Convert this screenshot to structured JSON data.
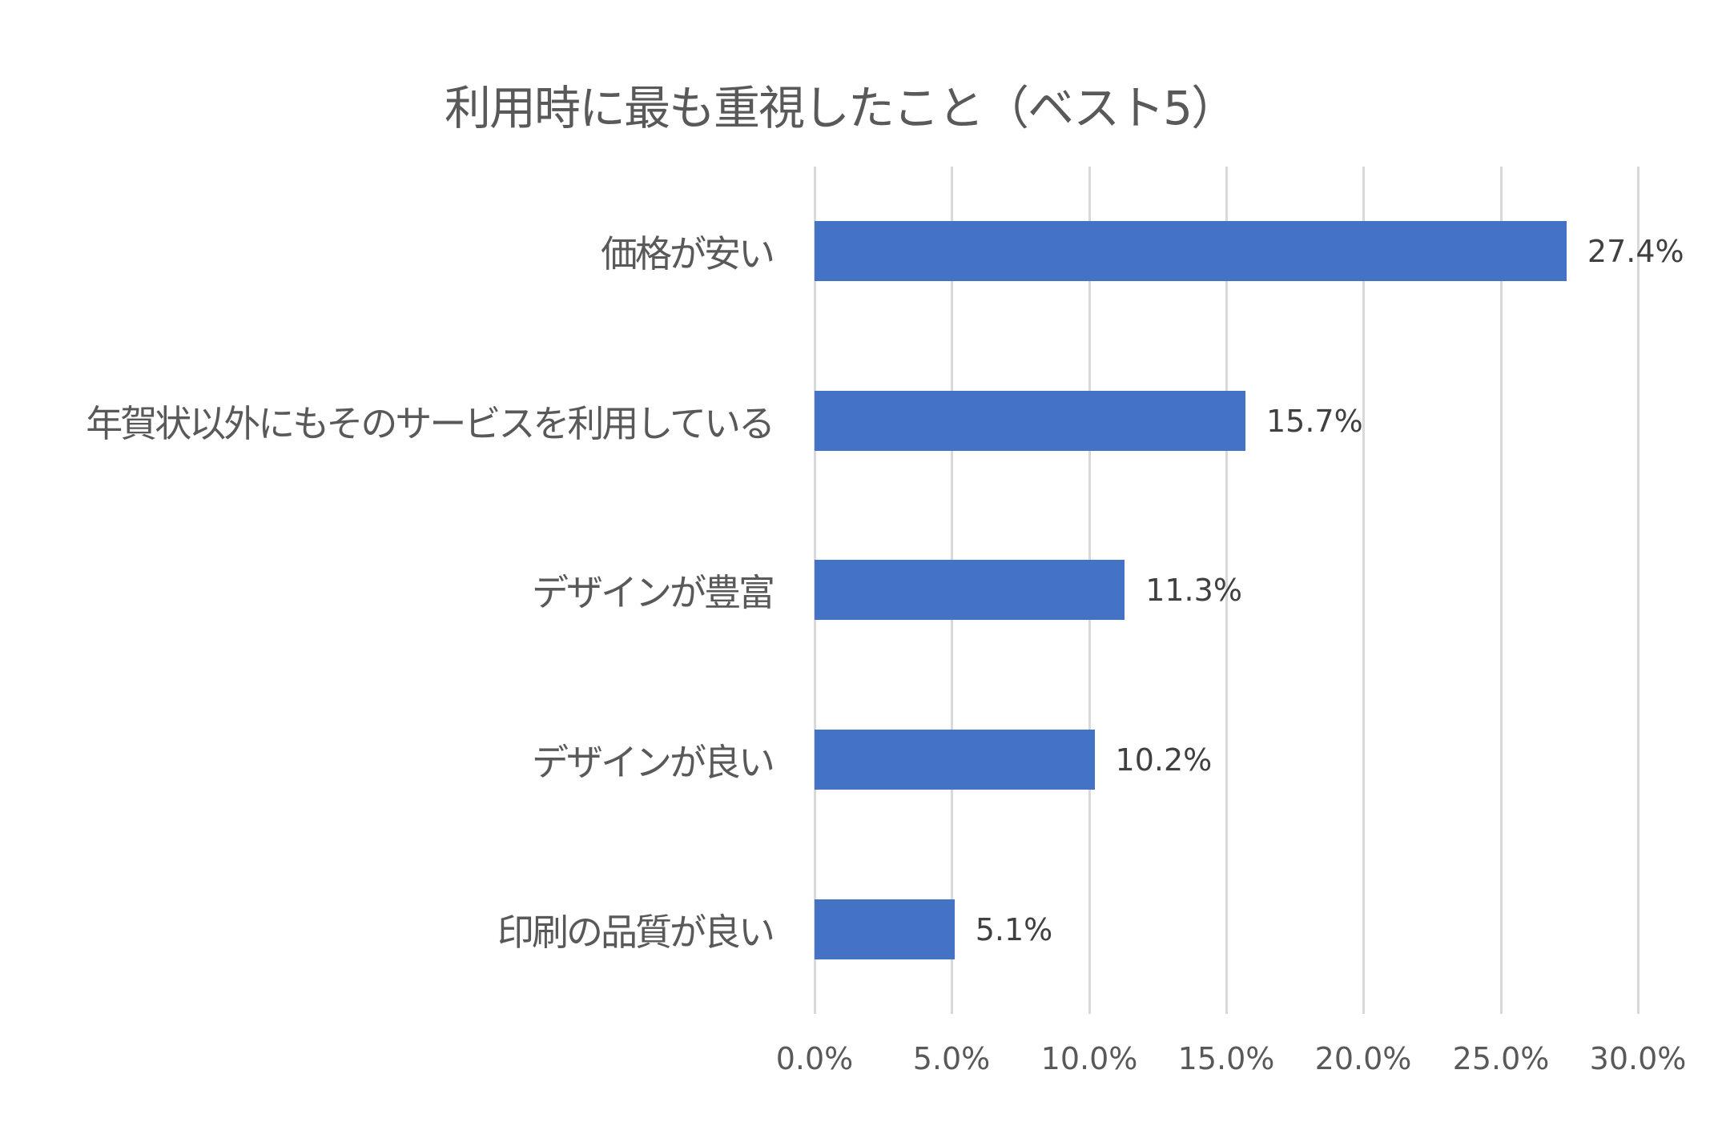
{
  "chart_data": {
    "type": "bar",
    "orientation": "horizontal",
    "title": "利用時に最も重視したこと（ベスト5）",
    "xlabel": "",
    "ylabel": "",
    "categories": [
      "価格が安い",
      "年賀状以外にもそのサービスを利用している",
      "デザインが豊富",
      "デザインが良い",
      "印刷の品質が良い"
    ],
    "values": [
      27.4,
      15.7,
      11.3,
      10.2,
      5.1
    ],
    "data_labels": [
      "27.4%",
      "15.7%",
      "11.3%",
      "10.2%",
      "5.1%"
    ],
    "xlim": [
      0,
      30
    ],
    "x_ticks": [
      "0.0%",
      "5.0%",
      "10.0%",
      "15.0%",
      "20.0%",
      "25.0%",
      "30.0%"
    ],
    "grid": true,
    "legend": null,
    "bar_color": "#4472c4"
  }
}
